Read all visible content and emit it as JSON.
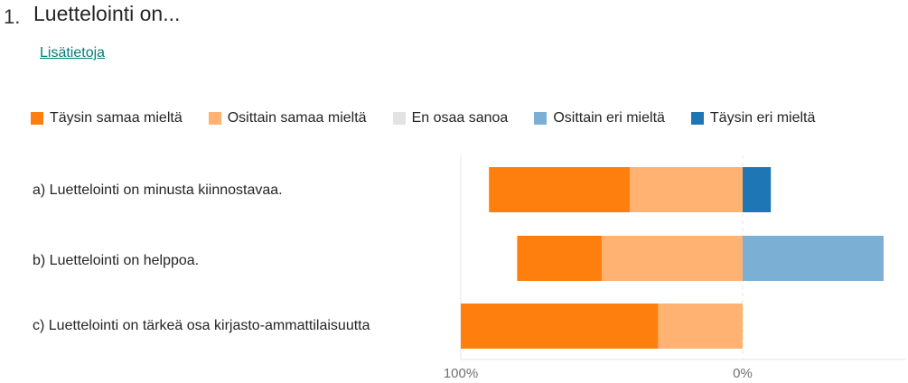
{
  "question": {
    "number": "1.",
    "title": "Luettelointi on...",
    "more_link": "Lisätietoja"
  },
  "chart_data": {
    "type": "bar",
    "orientation": "horizontal-diverging",
    "legend_position": "top",
    "series": [
      {
        "name": "Täysin samaa mieltä",
        "color": "#fe7f0e",
        "side": "agree",
        "values": [
          50,
          30,
          70
        ]
      },
      {
        "name": "Osittain samaa mieltä",
        "color": "#ffb271",
        "side": "agree",
        "values": [
          40,
          50,
          30
        ]
      },
      {
        "name": "En osaa sanoa",
        "color": "#e3e3e3",
        "side": "neutral",
        "values": [
          0,
          0,
          0
        ]
      },
      {
        "name": "Osittain eri mieltä",
        "color": "#7bafd4",
        "side": "disagree",
        "values": [
          0,
          50,
          0
        ]
      },
      {
        "name": "Täysin eri mieltä",
        "color": "#1f76b4",
        "side": "disagree",
        "values": [
          10,
          0,
          0
        ]
      }
    ],
    "categories": [
      "a) Luettelointi on minusta kiinnostavaa.",
      "b) Luettelointi on helppoa.",
      "c) Luettelointi on tärkeä osa kirjasto-ammattilaisuutta"
    ],
    "x_ticks": [
      "100%",
      "0%"
    ],
    "xlim": [
      -100,
      50
    ]
  }
}
